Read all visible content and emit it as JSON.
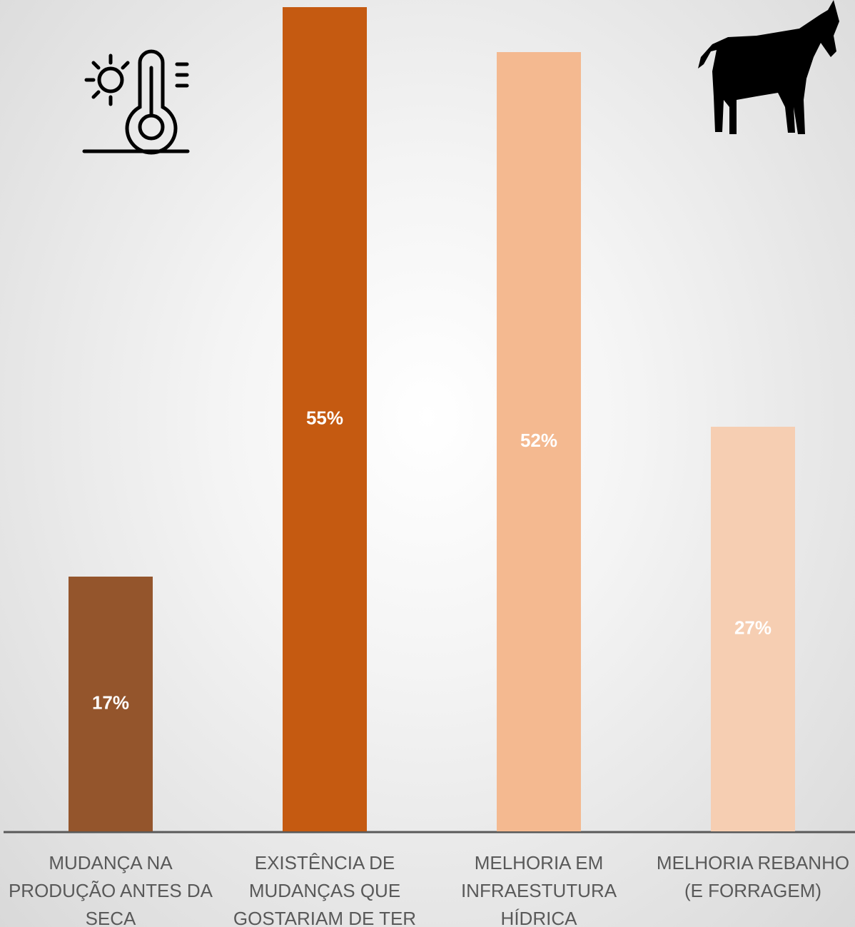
{
  "chart_data": {
    "type": "bar",
    "categories": [
      "MUDANÇA NA PRODUÇÃO ANTES DA SECA",
      "EXISTÊNCIA DE MUDANÇAS QUE GOSTARIAM DE TER",
      "MELHORIA EM INFRAESTUTURA HÍDRICA",
      "MELHORIA REBANHO (E FORRAGEM)"
    ],
    "values": [
      17,
      55,
      52,
      27
    ],
    "value_labels": [
      "17%",
      "55%",
      "52%",
      "27%"
    ],
    "colors": [
      "#94552c",
      "#c55a11",
      "#f4b990",
      "#f6ceb2"
    ]
  }
}
